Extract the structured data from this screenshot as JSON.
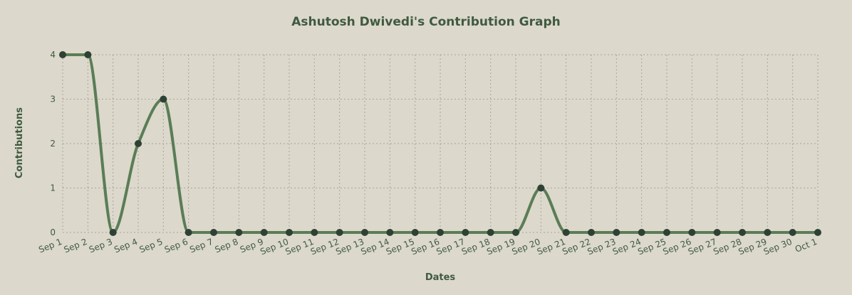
{
  "chart_data": {
    "type": "line",
    "title": "Ashutosh Dwivedi's Contribution Graph",
    "xlabel": "Dates",
    "ylabel": "Contributions",
    "categories": [
      "Sep 1",
      "Sep 2",
      "Sep 3",
      "Sep 4",
      "Sep 5",
      "Sep 6",
      "Sep 7",
      "Sep 8",
      "Sep 9",
      "Sep 10",
      "Sep 11",
      "Sep 12",
      "Sep 13",
      "Sep 14",
      "Sep 15",
      "Sep 16",
      "Sep 17",
      "Sep 18",
      "Sep 19",
      "Sep 20",
      "Sep 21",
      "Sep 22",
      "Sep 23",
      "Sep 24",
      "Sep 25",
      "Sep 26",
      "Sep 27",
      "Sep 28",
      "Sep 29",
      "Sep 30",
      "Oct 1"
    ],
    "series": [
      {
        "values": [
          4,
          4,
          0,
          2,
          3,
          0,
          0,
          0,
          0,
          0,
          0,
          0,
          0,
          0,
          0,
          0,
          0,
          0,
          0,
          1,
          0,
          0,
          0,
          0,
          0,
          0,
          0,
          0,
          0,
          0,
          0
        ]
      }
    ],
    "ylim": [
      0,
      4
    ],
    "yticks": [
      0,
      1,
      2,
      3,
      4
    ],
    "grid": true,
    "colors": {
      "background": "#dcd8cc",
      "line": "#5a7d55",
      "point": "#2e4234",
      "text": "#3f5a3f",
      "grid": "#a9a597"
    }
  }
}
